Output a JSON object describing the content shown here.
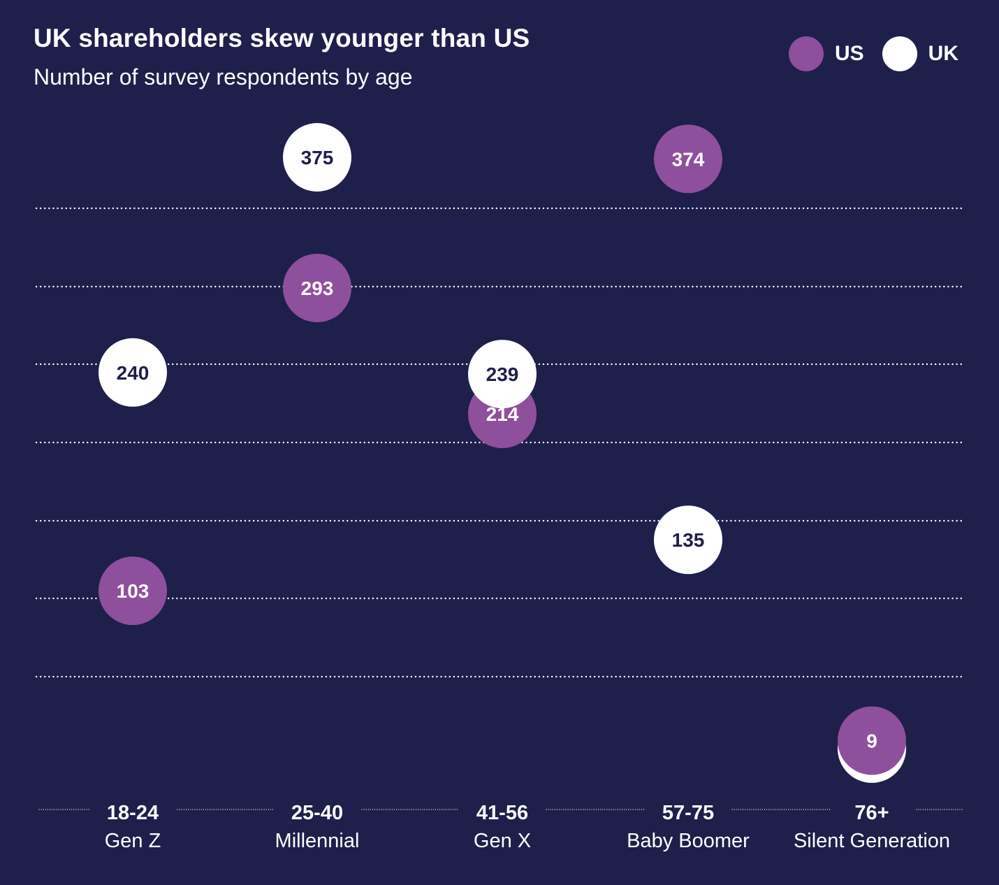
{
  "title": "UK shareholders skew younger than US",
  "subtitle": "Number of survey respondents by age",
  "legend": [
    {
      "label": "US",
      "color": "#8e4f9d"
    },
    {
      "label": "UK",
      "color": "#ffffff"
    }
  ],
  "colors": {
    "background": "#1e1f4b",
    "us": "#8e4f9d",
    "uk": "#ffffff",
    "uk_text": "#1e1f4b",
    "us_text": "#ffffff"
  },
  "chart_data": {
    "type": "scatter",
    "title": "UK shareholders skew younger than US",
    "subtitle": "Number of survey respondents by age",
    "categories": [
      "18-24",
      "25-40",
      "41-56",
      "57-75",
      "76+"
    ],
    "category_sublabels": [
      "Gen Z",
      "Millennial",
      "Gen X",
      "Baby Boomer",
      "Silent Generation"
    ],
    "series": [
      {
        "name": "US",
        "values": [
          103,
          293,
          214,
          374,
          9
        ]
      },
      {
        "name": "UK",
        "values": [
          240,
          375,
          239,
          135,
          4
        ]
      }
    ],
    "ylim": [
      -20,
      400
    ],
    "grid": true,
    "legend_position": "top-right"
  }
}
